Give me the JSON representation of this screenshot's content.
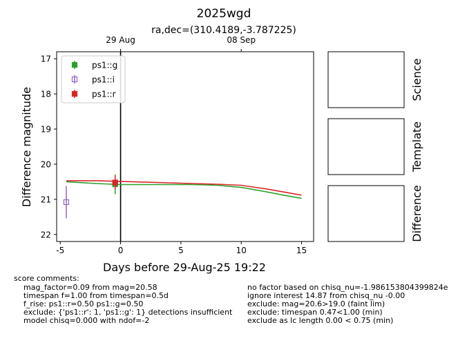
{
  "chart_data": {
    "type": "scatter",
    "title": "2025wgd",
    "subtitle": "ra,dec=(310.4189,-3.787225)",
    "xlabel": "Days before 29-Aug-25 19:22",
    "ylabel": "Difference magnitude",
    "xlim": [
      -5.3,
      16.0
    ],
    "ylim": [
      22.2,
      16.8
    ],
    "y_inverted": true,
    "grid": false,
    "x_ticks": [
      -5,
      0,
      5,
      10,
      15
    ],
    "y_ticks": [
      17,
      18,
      19,
      20,
      21,
      22
    ],
    "top_axis_ticks": [
      {
        "x": 0,
        "label": "29 Aug"
      },
      {
        "x": 10,
        "label": "08 Sep"
      }
    ],
    "vertical_line_x": 0,
    "legend_placement": "top-left",
    "series": [
      {
        "name": "ps1::g",
        "color": "#2ca02c",
        "marker": "filled-square",
        "points": [
          {
            "x": -0.45,
            "y": 20.57,
            "err": 0.28
          }
        ]
      },
      {
        "name": "ps1::i",
        "color": "#9467bd",
        "marker": "open-square",
        "points": [
          {
            "x": -4.5,
            "y": 21.08,
            "err": 0.46
          }
        ]
      },
      {
        "name": "ps1::r",
        "color": "#d62728",
        "marker": "filled-square",
        "points": [
          {
            "x": -0.45,
            "y": 20.52,
            "err": 0.2
          }
        ]
      }
    ],
    "model_curves": [
      {
        "name": "ps1::g",
        "color": "#2ca02c",
        "x": [
          -4.5,
          -2,
          0,
          2,
          4,
          6,
          8,
          10,
          12,
          13.5,
          15
        ],
        "y": [
          20.5,
          20.55,
          20.58,
          20.58,
          20.58,
          20.58,
          20.6,
          20.66,
          20.78,
          20.88,
          20.97
        ]
      },
      {
        "name": "ps1::r",
        "color": "#d62728",
        "x": [
          -4.5,
          -2,
          0,
          2,
          4,
          6,
          8,
          10,
          12,
          13.5,
          15
        ],
        "y": [
          20.47,
          20.47,
          20.49,
          20.51,
          20.53,
          20.55,
          20.57,
          20.6,
          20.7,
          20.79,
          20.88
        ]
      }
    ],
    "side_panels": [
      "Science",
      "Template",
      "Difference"
    ]
  },
  "comments": {
    "header": "score comments:",
    "left": [
      "mag_factor=0.09 from mag=20.58",
      "timespan f=1.00 from timespan=0.5d",
      "f_rise: ps1::r=0.50 ps1::g=0.50",
      "exclude: {'ps1::r': 1, 'ps1::g': 1} detections insufficient",
      "model chisq=0.000 with ndof=-2"
    ],
    "right": [
      "no factor based on chisq_nu=-1.986153804399824e",
      "ignore interest 14.87 from chisq_nu -0.00",
      "exclude: mag=20.6>19.0 (faint lim)",
      "exclude: timespan 0.47<1.00 (min)",
      "exclude as lc length 0.00 < 0.75 (min)"
    ]
  }
}
